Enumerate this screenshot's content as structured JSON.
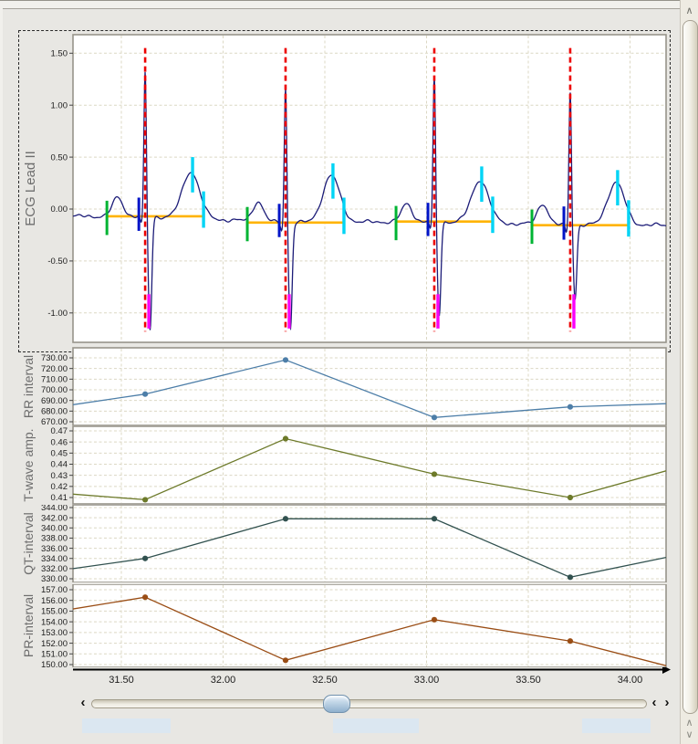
{
  "window": {
    "background": "#e8e7e3",
    "plot_background": "#ffffff",
    "plot_border": "#97948a",
    "grid_color": "#dcd8c4"
  },
  "x_axis": {
    "ticks": [
      {
        "label": "31.50",
        "v": 31.5
      },
      {
        "label": "32.00",
        "v": 32.0
      },
      {
        "label": "32.50",
        "v": 32.5
      },
      {
        "label": "33.00",
        "v": 33.0
      },
      {
        "label": "33.50",
        "v": 33.5
      },
      {
        "label": "34.00",
        "v": 34.0
      }
    ],
    "range": [
      31.262,
      34.177
    ],
    "axis_color": "#000000"
  },
  "chart_data": [
    {
      "type": "line",
      "id": "ecg",
      "ylabel": "ECG Lead II",
      "y_ticks": [
        {
          "label": "1.50",
          "v": 1.5
        },
        {
          "label": "1.00",
          "v": 1.0
        },
        {
          "label": "0.50",
          "v": 0.5
        },
        {
          "label": "0.00",
          "v": 0.0
        },
        {
          "label": "-0.50",
          "v": -0.5
        },
        {
          "label": "-1.00",
          "v": -1.0
        }
      ],
      "grid": true,
      "legend": false,
      "waveform": {
        "color": "#1c1c78",
        "components": {
          "p": {
            "dt": -0.135,
            "sigma": 0.026
          },
          "q": {
            "dt": -0.018,
            "sigma": 0.006,
            "amp": -0.08
          },
          "r": {
            "dt": 0.0,
            "sigma": 0.006
          },
          "s": {
            "dt": 0.024,
            "sigma": 0.0085
          },
          "t": {
            "dt": 0.225,
            "sigma": 0.042
          }
        },
        "noise": [
          [
            0.01,
            40,
            0
          ],
          [
            0.007,
            97,
            2
          ],
          [
            0.005,
            151,
            0.7
          ]
        ]
      },
      "beats": [
        {
          "t": 31.617,
          "baseline": -0.07,
          "p": 0.18,
          "r": 1.4,
          "s": -1.09,
          "t_wave": 0.45
        },
        {
          "t": 32.307,
          "baseline": -0.13,
          "p": 0.19,
          "r": 1.32,
          "s": -1.02,
          "t_wave": 0.45
        },
        {
          "t": 33.038,
          "baseline": -0.12,
          "p": 0.17,
          "r": 1.4,
          "s": -0.9,
          "t_wave": 0.41
        },
        {
          "t": 33.706,
          "baseline": -0.155,
          "p": 0.2,
          "r": 1.3,
          "s": -0.7,
          "t_wave": 0.41
        }
      ],
      "annotations": {
        "r_peak_line": {
          "color": "#ed0000",
          "dt": 0.0,
          "abs_range": [
            1.55,
            -1.18
          ],
          "dash": "6,4",
          "width": 2.6
        },
        "p_onset_tick": {
          "color": "#00b433",
          "dt": -0.188,
          "rel_range": [
            0.15,
            -0.18
          ],
          "width": 3
        },
        "q_onset_tick": {
          "color": "#0014c8",
          "dt": -0.031,
          "rel_range": [
            0.18,
            -0.14
          ],
          "width": 3
        },
        "s_tick": {
          "color": "#fa00fa",
          "dt": 0.018,
          "abs_range": [
            -0.82,
            -1.15
          ],
          "width": 3.4
        },
        "t_peak_tick": {
          "color": "#00d4f5",
          "dt": 0.233,
          "t_rel_range": [
            0.12,
            -0.22
          ],
          "width": 3.4
        },
        "t_end_tick": {
          "color": "#00d4f5",
          "dt": 0.287,
          "rel_range": [
            0.24,
            -0.11
          ],
          "width": 3.4
        },
        "baseline_line": {
          "color": "#ffb300",
          "from_dt": -0.188,
          "to_dt": 0.287,
          "width": 2.6
        }
      }
    },
    {
      "type": "line",
      "id": "rr",
      "ylabel": "RR interval",
      "color": "#4d7ea8",
      "marker": "circle",
      "grid": true,
      "legend": false,
      "y_ticks": [
        {
          "label": "730.00",
          "v": 730
        },
        {
          "label": "720.00",
          "v": 720
        },
        {
          "label": "710.00",
          "v": 710
        },
        {
          "label": "700.00",
          "v": 700
        },
        {
          "label": "690.00",
          "v": 690
        },
        {
          "label": "680.00",
          "v": 680
        },
        {
          "label": "670.00",
          "v": 670
        }
      ],
      "x": [
        31.262,
        31.617,
        32.307,
        33.038,
        33.706,
        34.177
      ],
      "values": [
        686,
        696,
        728,
        674,
        684,
        687
      ],
      "marker_indices": [
        1,
        2,
        3,
        4
      ]
    },
    {
      "type": "line",
      "id": "twave",
      "ylabel": "T-wave amp.",
      "color": "#6d7a2a",
      "marker": "circle",
      "grid": true,
      "legend": false,
      "y_ticks": [
        {
          "label": "0.47",
          "v": 0.47
        },
        {
          "label": "0.46",
          "v": 0.46
        },
        {
          "label": "0.45",
          "v": 0.45
        },
        {
          "label": "0.44",
          "v": 0.44
        },
        {
          "label": "0.43",
          "v": 0.43
        },
        {
          "label": "0.42",
          "v": 0.42
        },
        {
          "label": "0.41",
          "v": 0.41
        }
      ],
      "x": [
        31.262,
        31.617,
        32.307,
        33.038,
        33.706,
        34.177
      ],
      "values": [
        0.413,
        0.408,
        0.463,
        0.431,
        0.41,
        0.434
      ],
      "marker_indices": [
        1,
        2,
        3,
        4
      ]
    },
    {
      "type": "line",
      "id": "qt",
      "ylabel": "QT-interval",
      "color": "#31514f",
      "marker": "circle",
      "grid": true,
      "legend": false,
      "y_ticks": [
        {
          "label": "344.00",
          "v": 344
        },
        {
          "label": "342.00",
          "v": 342
        },
        {
          "label": "340.00",
          "v": 340
        },
        {
          "label": "338.00",
          "v": 338
        },
        {
          "label": "336.00",
          "v": 336
        },
        {
          "label": "334.00",
          "v": 334
        },
        {
          "label": "332.00",
          "v": 332
        },
        {
          "label": "330.00",
          "v": 330
        }
      ],
      "x": [
        31.262,
        31.617,
        32.307,
        33.038,
        33.706,
        34.177
      ],
      "values": [
        332,
        334,
        341.8,
        341.8,
        330.3,
        334.2
      ],
      "marker_indices": [
        1,
        2,
        3,
        4
      ]
    },
    {
      "type": "line",
      "id": "pr",
      "ylabel": "PR-interval",
      "color": "#9a4d15",
      "marker": "circle",
      "grid": true,
      "legend": false,
      "y_ticks": [
        {
          "label": "157.00",
          "v": 157
        },
        {
          "label": "156.00",
          "v": 156
        },
        {
          "label": "155.00",
          "v": 155
        },
        {
          "label": "154.00",
          "v": 154
        },
        {
          "label": "153.00",
          "v": 153
        },
        {
          "label": "152.00",
          "v": 152
        },
        {
          "label": "151.00",
          "v": 151
        },
        {
          "label": "150.00",
          "v": 150
        }
      ],
      "x": [
        31.262,
        31.617,
        32.307,
        33.038,
        33.706,
        34.177
      ],
      "values": [
        155.2,
        156.3,
        150.4,
        154.2,
        152.2,
        149.9
      ],
      "marker_indices": [
        1,
        2,
        3,
        4
      ]
    }
  ],
  "slider": {
    "left_arrow": "‹",
    "right_arrow_left": "‹",
    "right_arrow_right": "›"
  },
  "vscroll": {
    "up_arrow": "∧",
    "down_arrow": "∨"
  },
  "bottom_fields": [
    {
      "x": 90,
      "w": 97
    },
    {
      "x": 365,
      "w": 94
    },
    {
      "x": 638,
      "w": 75
    }
  ]
}
